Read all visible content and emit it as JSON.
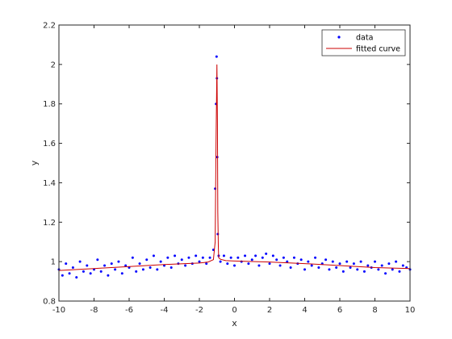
{
  "chart_data": {
    "type": "scatter",
    "xlabel": "x",
    "ylabel": "y",
    "xlim": [
      -10,
      10
    ],
    "ylim": [
      0.8,
      2.2
    ],
    "x_ticks": [
      -10,
      -8,
      -6,
      -4,
      -2,
      0,
      2,
      4,
      6,
      8,
      10
    ],
    "y_ticks": [
      0.8,
      1,
      1.2,
      1.4,
      1.6,
      1.8,
      2,
      2.2
    ],
    "x_tick_labels": [
      "-10",
      "-8",
      "-6",
      "-4",
      "-2",
      "0",
      "2",
      "4",
      "6",
      "8",
      "10"
    ],
    "y_tick_labels": [
      "0.8",
      "1",
      "1.2",
      "1.4",
      "1.6",
      "1.8",
      "2",
      "2.2"
    ],
    "grid": false,
    "legend_placement": "top-right",
    "series": [
      {
        "name": "data",
        "kind": "scatter",
        "color": "#0000ff",
        "x": [
          -10,
          -9.8,
          -9.6,
          -9.4,
          -9.2,
          -9,
          -8.8,
          -8.6,
          -8.4,
          -8.2,
          -8,
          -7.8,
          -7.6,
          -7.4,
          -7.2,
          -7,
          -6.8,
          -6.6,
          -6.4,
          -6.2,
          -6,
          -5.8,
          -5.6,
          -5.4,
          -5.2,
          -5,
          -4.8,
          -4.6,
          -4.4,
          -4.2,
          -4,
          -3.8,
          -3.6,
          -3.4,
          -3.2,
          -3,
          -2.8,
          -2.6,
          -2.4,
          -2.2,
          -2,
          -1.8,
          -1.6,
          -1.4,
          -1.2,
          -1.1,
          -1.05,
          -1.02,
          -1,
          -0.98,
          -0.95,
          -0.9,
          -0.8,
          -0.6,
          -0.4,
          -0.2,
          0,
          0.2,
          0.4,
          0.6,
          0.8,
          1,
          1.2,
          1.4,
          1.6,
          1.8,
          2,
          2.2,
          2.4,
          2.6,
          2.8,
          3,
          3.2,
          3.4,
          3.6,
          3.8,
          4,
          4.2,
          4.4,
          4.6,
          4.8,
          5,
          5.2,
          5.4,
          5.6,
          5.8,
          6,
          6.2,
          6.4,
          6.6,
          6.8,
          7,
          7.2,
          7.4,
          7.6,
          7.8,
          8,
          8.2,
          8.4,
          8.6,
          8.8,
          9,
          9.2,
          9.4,
          9.6,
          9.8,
          10
        ],
        "y": [
          0.96,
          0.93,
          0.99,
          0.94,
          0.97,
          0.92,
          1.0,
          0.95,
          0.98,
          0.94,
          0.96,
          1.01,
          0.95,
          0.98,
          0.93,
          0.99,
          0.96,
          1.0,
          0.94,
          0.98,
          0.97,
          1.02,
          0.95,
          0.99,
          0.96,
          1.01,
          0.97,
          1.03,
          0.96,
          1.0,
          0.98,
          1.02,
          0.97,
          1.03,
          0.99,
          1.01,
          0.98,
          1.02,
          0.99,
          1.03,
          1.0,
          1.02,
          0.99,
          1.02,
          1.06,
          1.37,
          1.8,
          2.04,
          1.93,
          1.53,
          1.14,
          1.03,
          1.0,
          1.03,
          0.99,
          1.02,
          0.98,
          1.02,
          1.0,
          1.03,
          0.99,
          1.01,
          1.03,
          0.98,
          1.02,
          1.04,
          0.99,
          1.03,
          1.01,
          0.98,
          1.02,
          1.0,
          0.97,
          1.02,
          0.99,
          1.01,
          0.96,
          1.0,
          0.98,
          1.02,
          0.97,
          0.99,
          1.01,
          0.96,
          1.0,
          0.97,
          0.99,
          0.95,
          1.0,
          0.97,
          0.99,
          0.96,
          1.0,
          0.95,
          0.98,
          0.97,
          1.0,
          0.96,
          0.98,
          0.94,
          0.99,
          0.96,
          1.0,
          0.95,
          0.98,
          0.97,
          0.96
        ]
      },
      {
        "name": "fitted curve",
        "kind": "line",
        "color": "#cc0000",
        "x": [
          -10,
          -8,
          -6,
          -4,
          -2,
          -1.5,
          -1.2,
          -1.1,
          -1.05,
          -1,
          -0.97,
          -0.95,
          -0.92,
          -0.9,
          -0.8,
          -0.5,
          0,
          2,
          4,
          6,
          8,
          10
        ],
        "y": [
          0.955,
          0.965,
          0.975,
          0.985,
          0.993,
          0.998,
          1.01,
          1.1,
          1.6,
          2.0,
          1.7,
          1.25,
          1.08,
          1.02,
          1.012,
          1.005,
          1.003,
          0.998,
          0.99,
          0.98,
          0.97,
          0.965
        ]
      }
    ]
  }
}
